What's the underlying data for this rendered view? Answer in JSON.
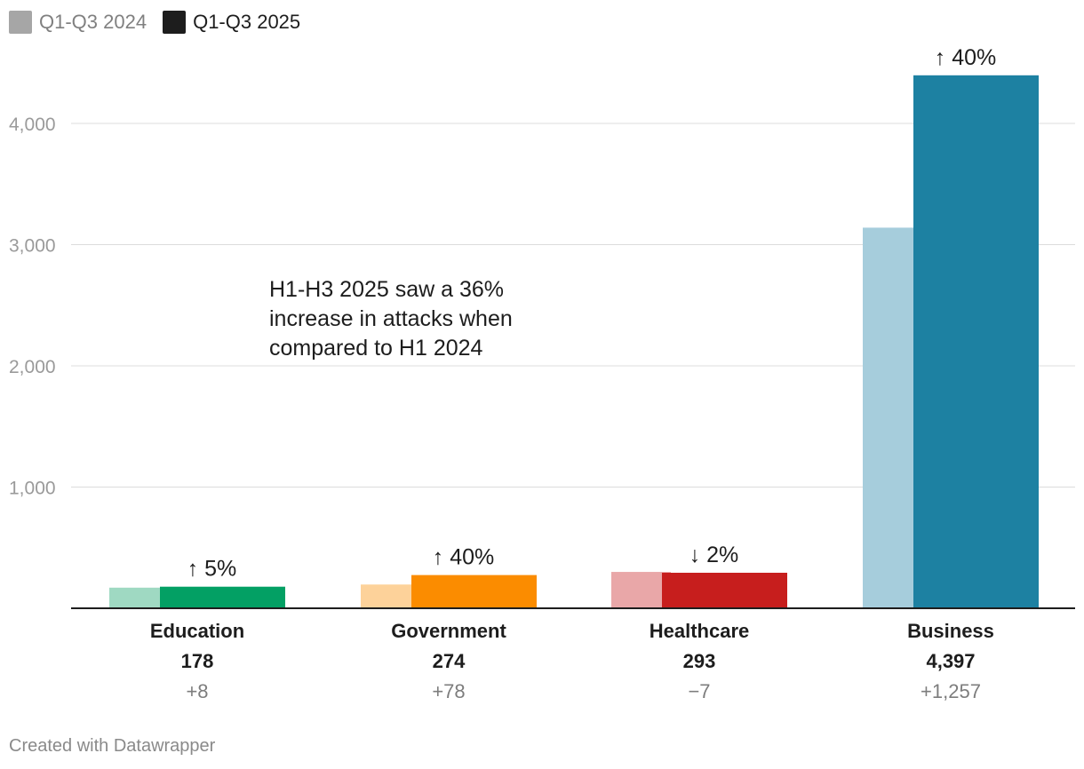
{
  "legend": {
    "items": [
      {
        "label": "Q1-Q3 2024",
        "color": "#a6a6a6"
      },
      {
        "label": "Q1-Q3 2025",
        "color": "#1d1d1d"
      }
    ]
  },
  "annotation": {
    "lines": [
      "H1-H3 2025 saw a 36%",
      "increase in attacks when",
      "compared to H1 2024"
    ]
  },
  "footer": {
    "credit": "Created with Datawrapper"
  },
  "chart_data": {
    "type": "bar",
    "title": "",
    "xlabel": "",
    "ylabel": "",
    "ylim": [
      0,
      4600
    ],
    "yticks": [
      1000,
      2000,
      3000,
      4000
    ],
    "ytick_labels": [
      "1,000",
      "2,000",
      "3,000",
      "4,000"
    ],
    "grid": true,
    "categories": [
      "Education",
      "Government",
      "Healthcare",
      "Business"
    ],
    "series": [
      {
        "name": "Q1-Q3 2024",
        "values": [
          170,
          196,
          300,
          3140
        ]
      },
      {
        "name": "Q1-Q3 2025",
        "values": [
          178,
          274,
          293,
          4397
        ]
      }
    ],
    "colors_2024": [
      "#9fd9c2",
      "#fdd29a",
      "#e9a7a8",
      "#a6cddc"
    ],
    "colors_2025": [
      "#03a064",
      "#fb8c00",
      "#c71e1d",
      "#1d81a2"
    ],
    "change_labels": [
      "↑ 5%",
      "↑ 40%",
      "↓ 2%",
      "↑ 40%"
    ],
    "value_labels": [
      "178",
      "274",
      "293",
      "4,397"
    ],
    "diff_labels": [
      "+8",
      "+78",
      "−7",
      "+1,257"
    ]
  }
}
